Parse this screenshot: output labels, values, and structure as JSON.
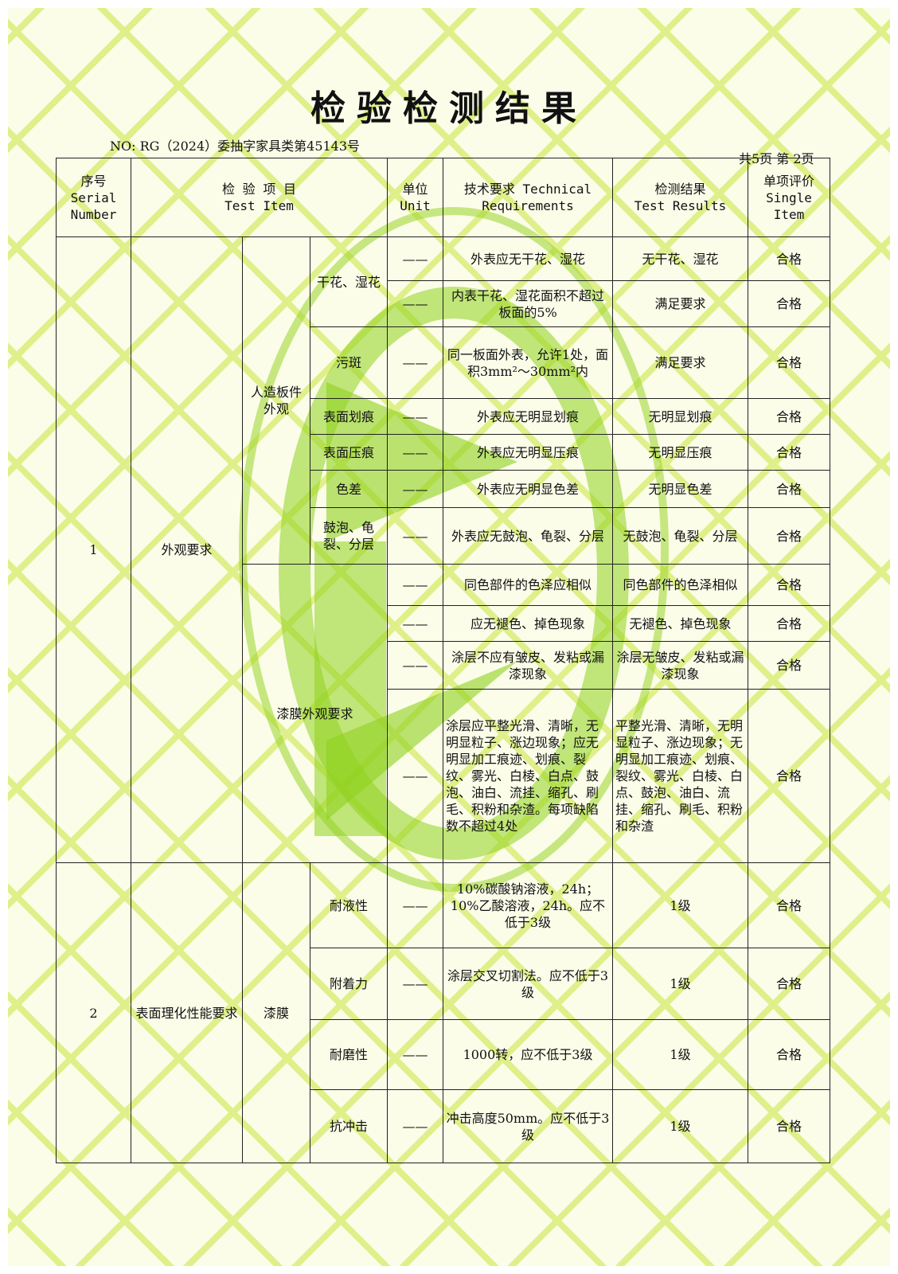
{
  "title": "检验检测结果",
  "report_no": "NO: RG（2024）委抽字家具类第45143号",
  "page_info": "共5页 第 2页",
  "header": {
    "serial_cn": "序号",
    "serial_en": "Serial Number",
    "item_cn": "检 验 项 目",
    "item_en": "Test Item",
    "unit_cn": "单位",
    "unit_en": "Unit",
    "req": "技术要求 Technical Requirements",
    "result_cn": "检测结果",
    "result_en": "Test Results",
    "eval_cn": "单项评价",
    "eval_en": "Single Item"
  },
  "dash": "——",
  "groups": [
    {
      "serial": "1",
      "name": "外观要求",
      "sub1": "人造板件外观",
      "sub2": "漆膜外观要求"
    },
    {
      "serial": "2",
      "name": "表面理化性能要求",
      "sub1": "漆膜"
    }
  ],
  "rows": [
    {
      "item": "干花、湿花",
      "req": "外表应无干花、湿花",
      "result": "无干花、湿花",
      "eval": "合格"
    },
    {
      "req": "内表干花、湿花面积不超过板面的5%",
      "result": "满足要求",
      "eval": "合格"
    },
    {
      "item": "污斑",
      "req": "同一板面外表，允许1处，面积3mm²～30mm²内",
      "result": "满足要求",
      "eval": "合格"
    },
    {
      "item": "表面划痕",
      "req": "外表应无明显划痕",
      "result": "无明显划痕",
      "eval": "合格"
    },
    {
      "item": "表面压痕",
      "req": "外表应无明显压痕",
      "result": "无明显压痕",
      "eval": "合格"
    },
    {
      "item": "色差",
      "req": "外表应无明显色差",
      "result": "无明显色差",
      "eval": "合格"
    },
    {
      "item": "鼓泡、龟裂、分层",
      "req": "外表应无鼓泡、龟裂、分层",
      "result": "无鼓泡、龟裂、分层",
      "eval": "合格"
    },
    {
      "req": "同色部件的色泽应相似",
      "result": "同色部件的色泽相似",
      "eval": "合格"
    },
    {
      "req": "应无褪色、掉色现象",
      "result": "无褪色、掉色现象",
      "eval": "合格"
    },
    {
      "req": "涂层不应有皱皮、发粘或漏漆现象",
      "result": "涂层无皱皮、发粘或漏漆现象",
      "eval": "合格"
    },
    {
      "req": "涂层应平整光滑、清晰，无明显粒子、涨边现象；应无明显加工痕迹、划痕、裂纹、雾光、白棱、白点、鼓泡、油白、流挂、缩孔、刷毛、积粉和杂渣。每项缺陷数不超过4处",
      "result": "平整光滑、清晰，无明显粒子、涨边现象；无明显加工痕迹、划痕、裂纹、雾光、白棱、白点、鼓泡、油白、流挂、缩孔、刷毛、积粉和杂渣",
      "eval": "合格"
    },
    {
      "item": "耐液性",
      "req": "10%碳酸钠溶液，24h；10%乙酸溶液，24h。应不低于3级",
      "result": "1级",
      "eval": "合格"
    },
    {
      "item": "附着力",
      "req": "涂层交叉切割法。应不低于3级",
      "result": "1级",
      "eval": "合格"
    },
    {
      "item": "耐磨性",
      "req": "1000转，应不低于3级",
      "result": "1级",
      "eval": "合格"
    },
    {
      "item": "抗冲击",
      "req": "冲击高度50mm。应不低于3级",
      "result": "1级",
      "eval": "合格"
    }
  ],
  "colors": {
    "pattern": "#dff08a",
    "watermark": "#8fd11e"
  }
}
